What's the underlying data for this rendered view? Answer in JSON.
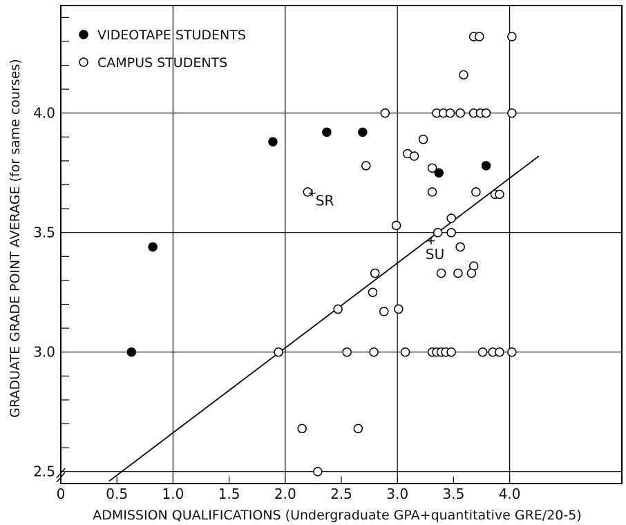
{
  "chart_data": {
    "type": "scatter",
    "title": "",
    "xlabel": "ADMISSION QUALIFICATIONS (Undergraduate GPA+quantitative GRE/20-5)",
    "ylabel": "GRADUATE GRADE POINT AVERAGE (for same courses)",
    "xlim": [
      0,
      5
    ],
    "ylim": [
      2.45,
      4.45
    ],
    "grid": true,
    "legend": "top-left",
    "x_ticks": [
      "0",
      "0.5",
      "1.0",
      "1.5",
      "2.0",
      "2.5",
      "3.0",
      "3.5",
      "4.0"
    ],
    "x_tick_values": [
      0,
      0.5,
      1.0,
      1.5,
      2.0,
      2.5,
      3.0,
      3.5,
      4.0
    ],
    "y_ticks": [
      "2.5",
      "3.0",
      "3.5",
      "4.0"
    ],
    "y_tick_values": [
      2.5,
      3.0,
      3.5,
      4.0
    ],
    "series": [
      {
        "name": "VIDEOTAPE STUDENTS",
        "marker": "filled-circle",
        "color": "#000000",
        "points": [
          [
            0.63,
            3.0
          ],
          [
            0.82,
            3.44
          ],
          [
            1.89,
            3.88
          ],
          [
            2.37,
            3.92
          ],
          [
            2.69,
            3.92
          ],
          [
            3.37,
            3.75
          ],
          [
            3.79,
            3.78
          ]
        ]
      },
      {
        "name": "CAMPUS STUDENTS",
        "marker": "open-circle",
        "color": "#000000",
        "points": [
          [
            3.68,
            4.32
          ],
          [
            3.73,
            4.32
          ],
          [
            4.02,
            4.32
          ],
          [
            3.59,
            4.16
          ],
          [
            2.89,
            4.0
          ],
          [
            3.35,
            4.0
          ],
          [
            3.41,
            4.0
          ],
          [
            3.47,
            4.0
          ],
          [
            3.56,
            4.0
          ],
          [
            3.68,
            4.0
          ],
          [
            3.74,
            4.0
          ],
          [
            3.79,
            4.0
          ],
          [
            4.02,
            4.0
          ],
          [
            3.23,
            3.89
          ],
          [
            3.09,
            3.83
          ],
          [
            3.15,
            3.82
          ],
          [
            2.72,
            3.78
          ],
          [
            3.31,
            3.77
          ],
          [
            3.31,
            3.67
          ],
          [
            3.7,
            3.67
          ],
          [
            3.87,
            3.66
          ],
          [
            3.91,
            3.66
          ],
          [
            3.48,
            3.56
          ],
          [
            2.99,
            3.53
          ],
          [
            3.36,
            3.5
          ],
          [
            3.48,
            3.5
          ],
          [
            3.56,
            3.44
          ],
          [
            3.68,
            3.36
          ],
          [
            3.66,
            3.33
          ],
          [
            2.8,
            3.33
          ],
          [
            3.39,
            3.33
          ],
          [
            3.54,
            3.33
          ],
          [
            2.78,
            3.25
          ],
          [
            2.47,
            3.18
          ],
          [
            2.88,
            3.17
          ],
          [
            3.01,
            3.18
          ],
          [
            1.94,
            3.0
          ],
          [
            2.55,
            3.0
          ],
          [
            2.79,
            3.0
          ],
          [
            3.07,
            3.0
          ],
          [
            3.31,
            3.0
          ],
          [
            3.35,
            3.0
          ],
          [
            3.39,
            3.0
          ],
          [
            3.43,
            3.0
          ],
          [
            3.48,
            3.0
          ],
          [
            3.76,
            3.0
          ],
          [
            3.85,
            3.0
          ],
          [
            3.91,
            3.0
          ],
          [
            4.02,
            3.0
          ],
          [
            2.15,
            2.68
          ],
          [
            2.65,
            2.68
          ],
          [
            2.29,
            2.5
          ],
          [
            2.2,
            3.67
          ]
        ]
      }
    ],
    "regression_line": {
      "x1": 0.43,
      "y1": 2.46,
      "x2": 4.26,
      "y2": 3.82
    },
    "annotations": [
      {
        "label": "SR",
        "x": 2.24,
        "y": 3.665
      },
      {
        "label": "SU",
        "x": 3.3,
        "y": 3.465
      }
    ]
  }
}
